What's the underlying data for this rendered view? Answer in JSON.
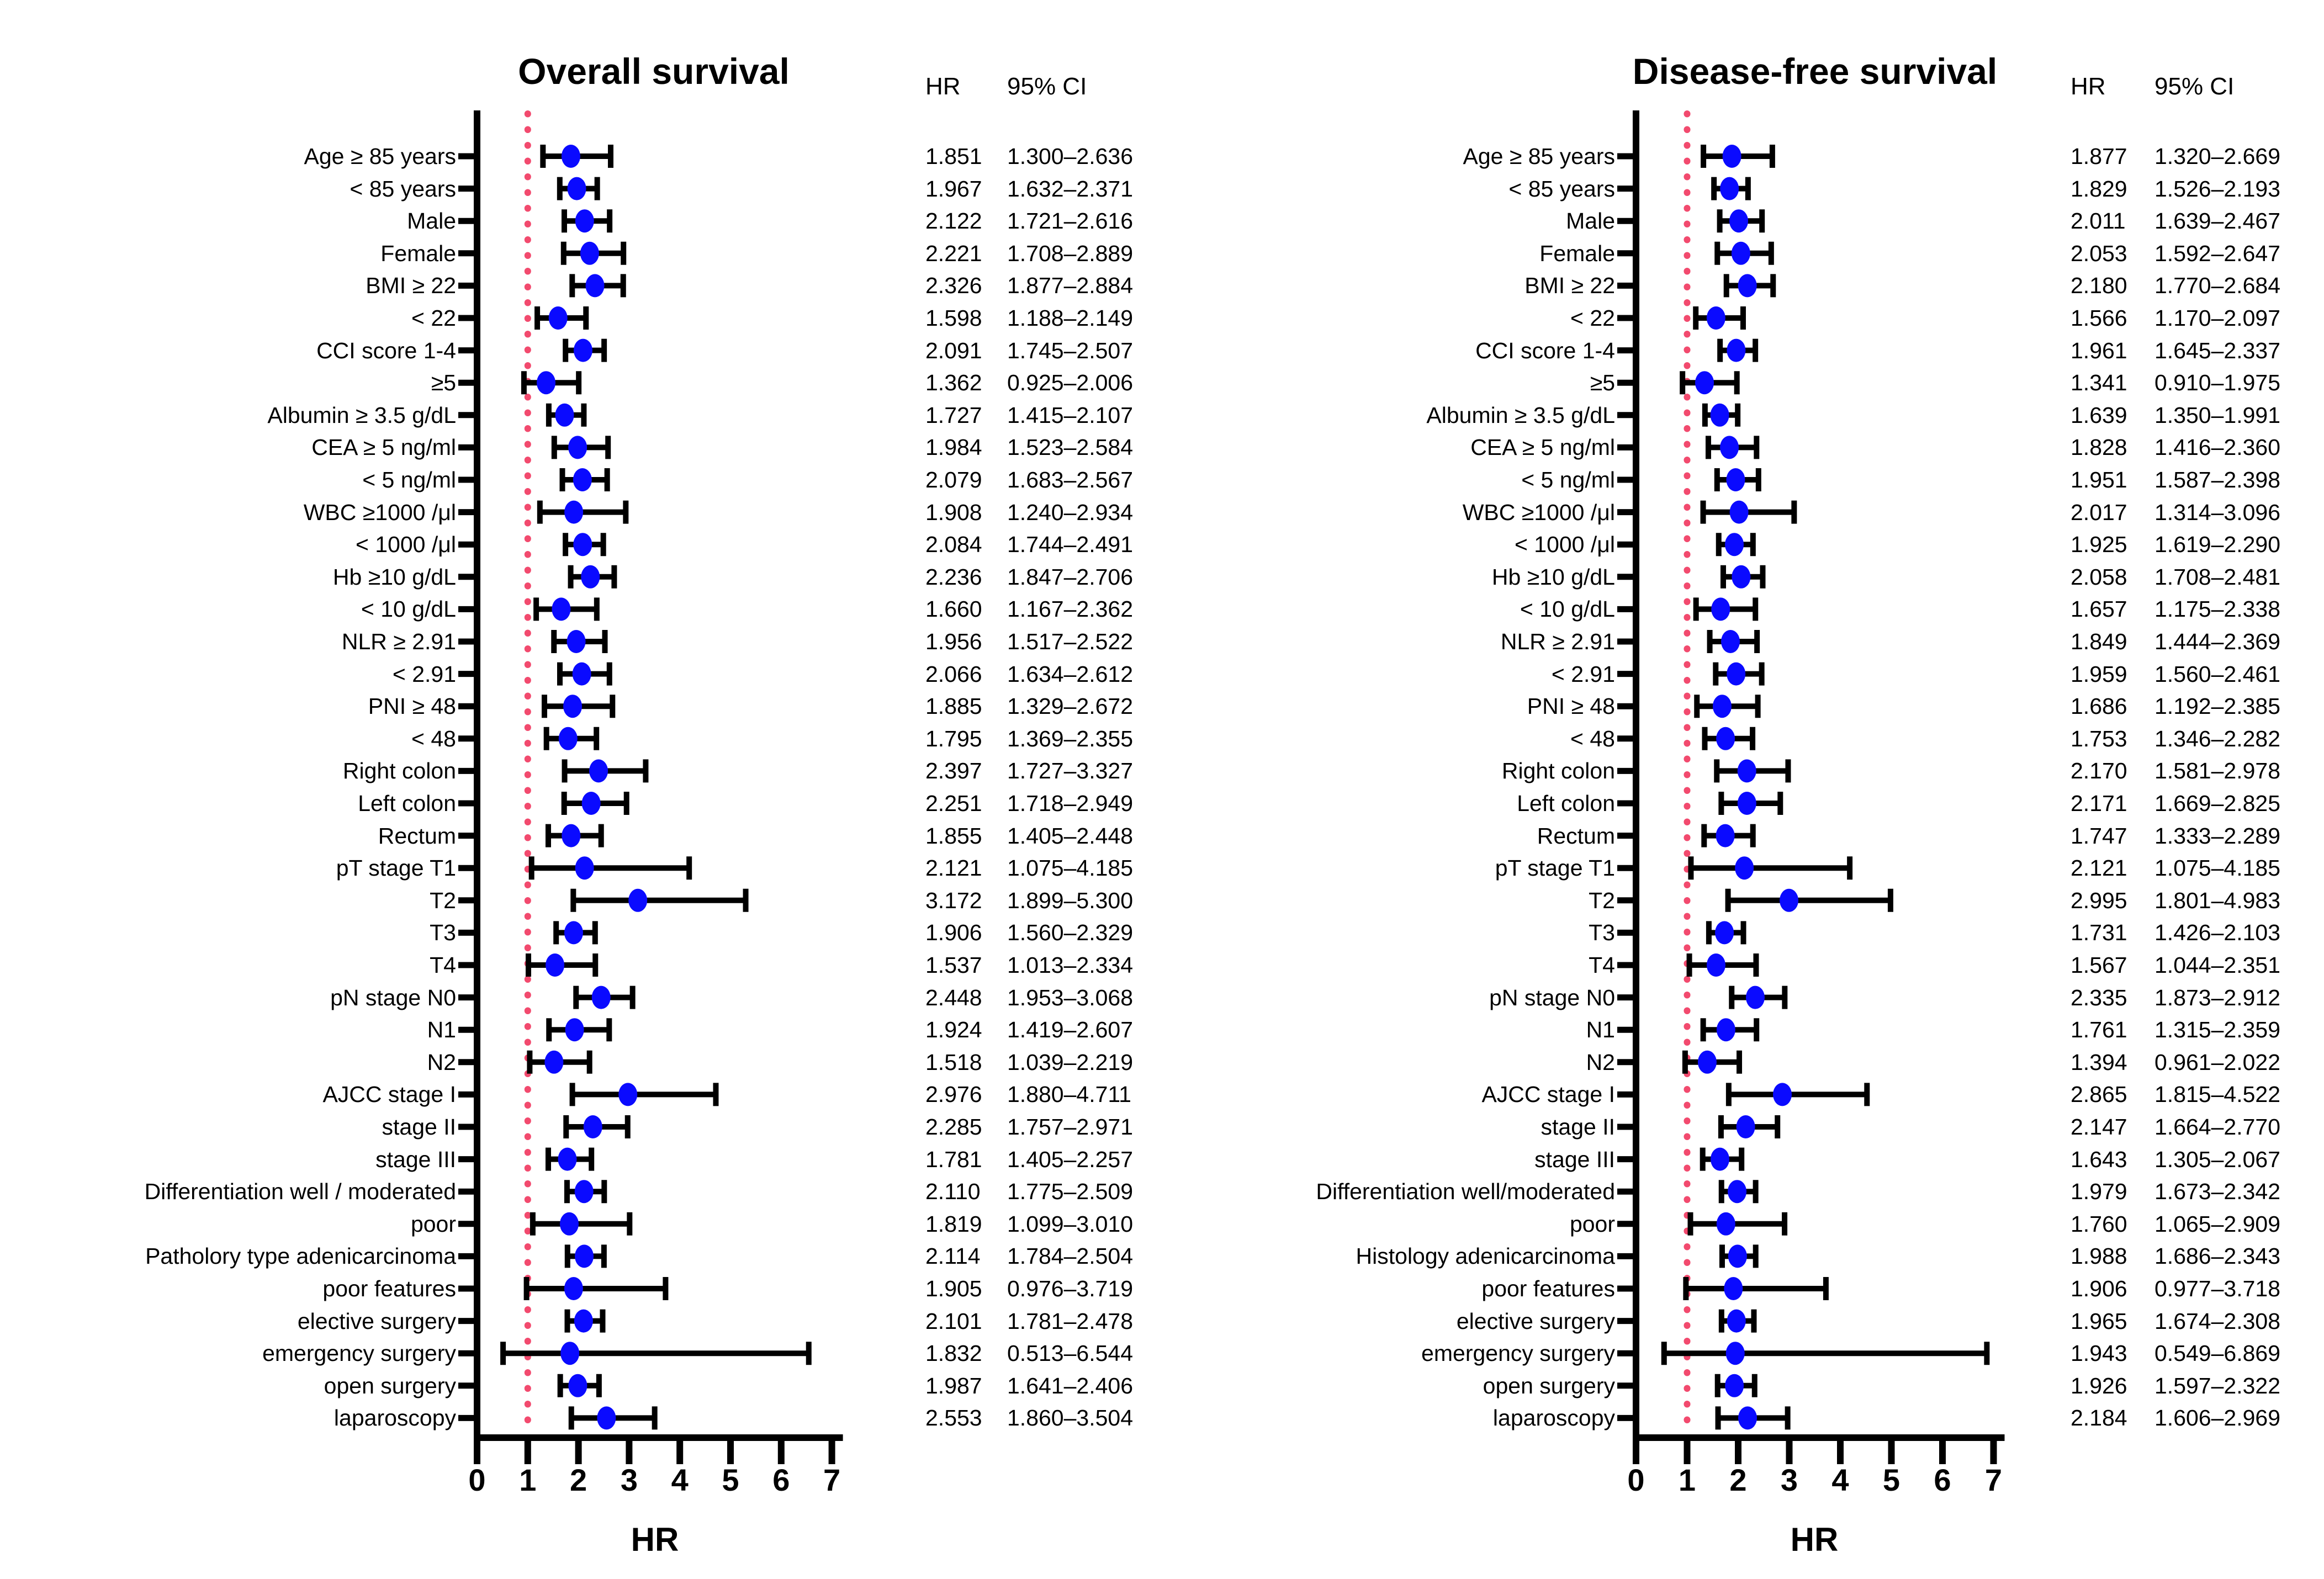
{
  "colors": {
    "marker": "#0a0aff",
    "refline": "#f24a6e",
    "axis_and_bars": "#000000",
    "text": "#000000",
    "background": "#ffffff"
  },
  "chart_data": [
    {
      "type": "scatter",
      "subtype": "forest-plot",
      "title": "Overall survival",
      "xlabel": "HR",
      "xlim": [
        0,
        7
      ],
      "xticks": [
        "0",
        "1",
        "2",
        "3",
        "4",
        "5",
        "6",
        "7"
      ],
      "refline_x": 1,
      "grid": "off",
      "legend": "none",
      "col_headers": [
        "HR",
        "95% CI"
      ],
      "rows": [
        {
          "label": "Age ≥ 85 years",
          "hr": "1.851",
          "ci": "1.300–2.636"
        },
        {
          "label": "< 85 years",
          "hr": "1.967",
          "ci": "1.632–2.371"
        },
        {
          "label": "Male",
          "hr": "2.122",
          "ci": "1.721–2.616"
        },
        {
          "label": "Female",
          "hr": "2.221",
          "ci": "1.708–2.889"
        },
        {
          "label": "BMI ≥ 22",
          "hr": "2.326",
          "ci": "1.877–2.884"
        },
        {
          "label": "< 22",
          "hr": "1.598",
          "ci": "1.188–2.149"
        },
        {
          "label": "CCI score 1-4",
          "hr": "2.091",
          "ci": "1.745–2.507"
        },
        {
          "label": "≥5",
          "hr": "1.362",
          "ci": "0.925–2.006"
        },
        {
          "label": "Albumin ≥ 3.5 g/dL",
          "hr": "1.727",
          "ci": "1.415–2.107"
        },
        {
          "label": "CEA ≥ 5 ng/ml",
          "hr": "1.984",
          "ci": "1.523–2.584"
        },
        {
          "label": "< 5 ng/ml",
          "hr": "2.079",
          "ci": "1.683–2.567"
        },
        {
          "label": "WBC ≥1000 /μl",
          "hr": "1.908",
          "ci": "1.240–2.934"
        },
        {
          "label": "< 1000 /μl",
          "hr": "2.084",
          "ci": "1.744–2.491"
        },
        {
          "label": "Hb ≥10 g/dL",
          "hr": "2.236",
          "ci": "1.847–2.706"
        },
        {
          "label": "< 10 g/dL",
          "hr": "1.660",
          "ci": "1.167–2.362"
        },
        {
          "label": "NLR ≥ 2.91",
          "hr": "1.956",
          "ci": "1.517–2.522"
        },
        {
          "label": "< 2.91",
          "hr": "2.066",
          "ci": "1.634–2.612"
        },
        {
          "label": "PNI ≥ 48",
          "hr": "1.885",
          "ci": "1.329–2.672"
        },
        {
          "label": "< 48",
          "hr": "1.795",
          "ci": "1.369–2.355"
        },
        {
          "label": "Right colon",
          "hr": "2.397",
          "ci": "1.727–3.327"
        },
        {
          "label": "Left colon",
          "hr": "2.251",
          "ci": "1.718–2.949"
        },
        {
          "label": "Rectum",
          "hr": "1.855",
          "ci": "1.405–2.448"
        },
        {
          "label": "pT stage T1",
          "hr": "2.121",
          "ci": "1.075–4.185"
        },
        {
          "label": "T2",
          "hr": "3.172",
          "ci": "1.899–5.300"
        },
        {
          "label": "T3",
          "hr": "1.906",
          "ci": "1.560–2.329"
        },
        {
          "label": "T4",
          "hr": "1.537",
          "ci": "1.013–2.334"
        },
        {
          "label": "pN stage N0",
          "hr": "2.448",
          "ci": "1.953–3.068"
        },
        {
          "label": "N1",
          "hr": "1.924",
          "ci": "1.419–2.607"
        },
        {
          "label": "N2",
          "hr": "1.518",
          "ci": "1.039–2.219"
        },
        {
          "label": "AJCC stage I",
          "hr": "2.976",
          "ci": "1.880–4.711"
        },
        {
          "label": "stage II",
          "hr": "2.285",
          "ci": "1.757–2.971"
        },
        {
          "label": "stage III",
          "hr": "1.781",
          "ci": "1.405–2.257"
        },
        {
          "label": "Differentiation well / moderated",
          "hr": "2.110",
          "ci": "1.775–2.509"
        },
        {
          "label": "poor",
          "hr": "1.819",
          "ci": "1.099–3.010"
        },
        {
          "label": "Patholory type adenicarcinoma",
          "hr": "2.114",
          "ci": "1.784–2.504"
        },
        {
          "label": "poor features",
          "hr": "1.905",
          "ci": "0.976–3.719"
        },
        {
          "label": "elective surgery",
          "hr": "2.101",
          "ci": "1.781–2.478"
        },
        {
          "label": "emergency surgery",
          "hr": "1.832",
          "ci": "0.513–6.544"
        },
        {
          "label": "open surgery",
          "hr": "1.987",
          "ci": "1.641–2.406"
        },
        {
          "label": "laparoscopy",
          "hr": "2.553",
          "ci": "1.860–3.504"
        }
      ]
    },
    {
      "type": "scatter",
      "subtype": "forest-plot",
      "title": "Disease-free survival",
      "xlabel": "HR",
      "xlim": [
        0,
        7
      ],
      "xticks": [
        "0",
        "1",
        "2",
        "3",
        "4",
        "5",
        "6",
        "7"
      ],
      "refline_x": 1,
      "grid": "off",
      "legend": "none",
      "col_headers": [
        "HR",
        "95% CI"
      ],
      "rows": [
        {
          "label": "Age ≥ 85 years",
          "hr": "1.877",
          "ci": "1.320–2.669"
        },
        {
          "label": "< 85 years",
          "hr": "1.829",
          "ci": "1.526–2.193"
        },
        {
          "label": "Male",
          "hr": "2.011",
          "ci": "1.639–2.467"
        },
        {
          "label": "Female",
          "hr": "2.053",
          "ci": "1.592–2.647"
        },
        {
          "label": "BMI ≥ 22",
          "hr": "2.180",
          "ci": "1.770–2.684"
        },
        {
          "label": "< 22",
          "hr": "1.566",
          "ci": "1.170–2.097"
        },
        {
          "label": "CCI score 1-4",
          "hr": "1.961",
          "ci": "1.645–2.337"
        },
        {
          "label": "≥5",
          "hr": "1.341",
          "ci": "0.910–1.975"
        },
        {
          "label": "Albumin ≥ 3.5 g/dL",
          "hr": "1.639",
          "ci": "1.350–1.991"
        },
        {
          "label": "CEA ≥ 5 ng/ml",
          "hr": "1.828",
          "ci": "1.416–2.360"
        },
        {
          "label": "< 5 ng/ml",
          "hr": "1.951",
          "ci": "1.587–2.398"
        },
        {
          "label": "WBC ≥1000 /μl",
          "hr": "2.017",
          "ci": "1.314–3.096"
        },
        {
          "label": "< 1000 /μl",
          "hr": "1.925",
          "ci": "1.619–2.290"
        },
        {
          "label": "Hb ≥10 g/dL",
          "hr": "2.058",
          "ci": "1.708–2.481"
        },
        {
          "label": "< 10 g/dL",
          "hr": "1.657",
          "ci": "1.175–2.338"
        },
        {
          "label": "NLR ≥ 2.91",
          "hr": "1.849",
          "ci": "1.444–2.369"
        },
        {
          "label": "< 2.91",
          "hr": "1.959",
          "ci": "1.560–2.461"
        },
        {
          "label": "PNI ≥ 48",
          "hr": "1.686",
          "ci": "1.192–2.385"
        },
        {
          "label": "< 48",
          "hr": "1.753",
          "ci": "1.346–2.282"
        },
        {
          "label": "Right colon",
          "hr": "2.170",
          "ci": "1.581–2.978"
        },
        {
          "label": "Left colon",
          "hr": "2.171",
          "ci": "1.669–2.825"
        },
        {
          "label": "Rectum",
          "hr": "1.747",
          "ci": "1.333–2.289"
        },
        {
          "label": "pT stage T1",
          "hr": "2.121",
          "ci": "1.075–4.185"
        },
        {
          "label": "T2",
          "hr": "2.995",
          "ci": "1.801–4.983"
        },
        {
          "label": "T3",
          "hr": "1.731",
          "ci": "1.426–2.103"
        },
        {
          "label": "T4",
          "hr": "1.567",
          "ci": "1.044–2.351"
        },
        {
          "label": "pN stage N0",
          "hr": "2.335",
          "ci": "1.873–2.912"
        },
        {
          "label": "N1",
          "hr": "1.761",
          "ci": "1.315–2.359"
        },
        {
          "label": "N2",
          "hr": "1.394",
          "ci": "0.961–2.022"
        },
        {
          "label": "AJCC stage I",
          "hr": "2.865",
          "ci": "1.815–4.522"
        },
        {
          "label": "stage II",
          "hr": "2.147",
          "ci": "1.664–2.770"
        },
        {
          "label": "stage III",
          "hr": "1.643",
          "ci": "1.305–2.067"
        },
        {
          "label": "Differentiation well/moderated",
          "hr": "1.979",
          "ci": "1.673–2.342"
        },
        {
          "label": "poor",
          "hr": "1.760",
          "ci": "1.065–2.909"
        },
        {
          "label": "Histology adenicarcinoma",
          "hr": "1.988",
          "ci": "1.686–2.343"
        },
        {
          "label": "poor features",
          "hr": "1.906",
          "ci": "0.977–3.718"
        },
        {
          "label": "elective surgery",
          "hr": "1.965",
          "ci": "1.674–2.308"
        },
        {
          "label": "emergency surgery",
          "hr": "1.943",
          "ci": "0.549–6.869"
        },
        {
          "label": "open surgery",
          "hr": "1.926",
          "ci": "1.597–2.322"
        },
        {
          "label": "laparoscopy",
          "hr": "2.184",
          "ci": "1.606–2.969"
        }
      ]
    }
  ]
}
